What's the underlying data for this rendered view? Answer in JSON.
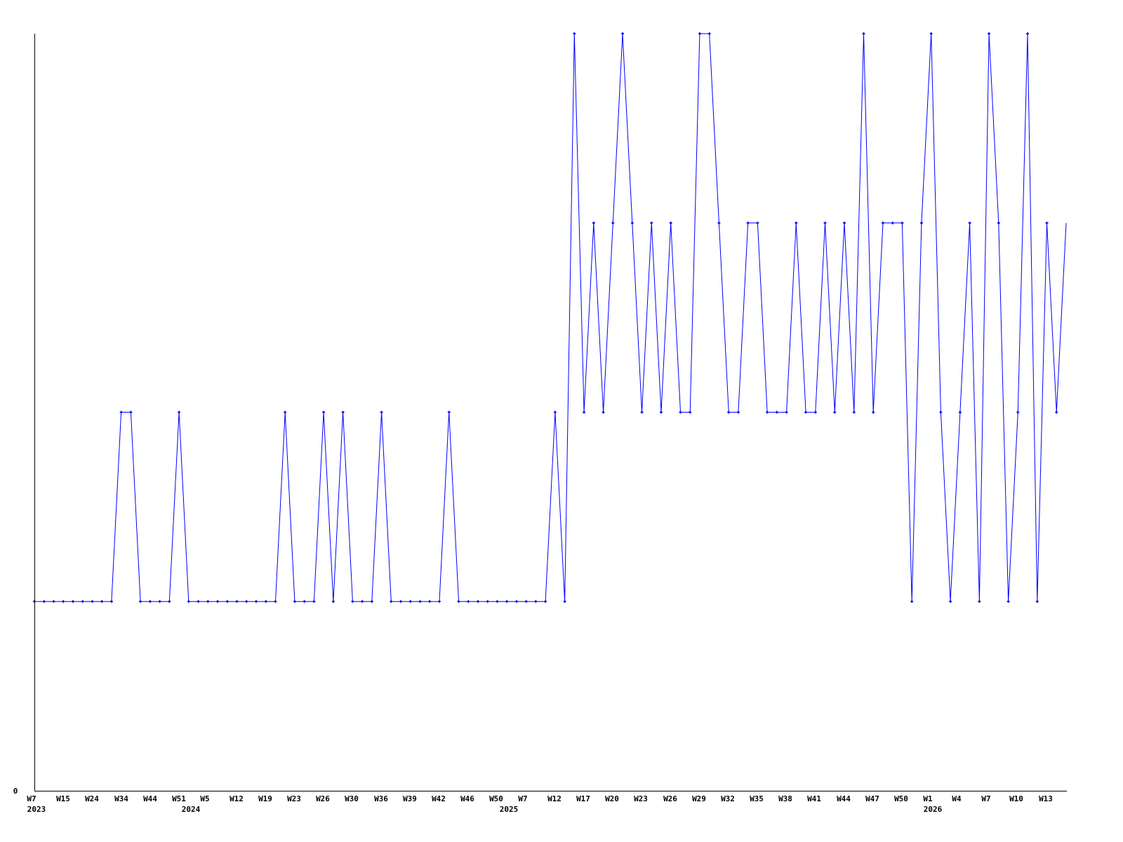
{
  "chart_data": {
    "type": "line",
    "title": "",
    "xlabel": "",
    "ylabel": "",
    "ylim": [
      0,
      4
    ],
    "y_tick_labels": [
      "0"
    ],
    "grid": false,
    "line_color": "#0000ff",
    "axis_color": "#000000",
    "x_tick_labels": [
      "W7",
      "W15",
      "W24",
      "W34",
      "W44",
      "W51",
      "W5",
      "W12",
      "W19",
      "W23",
      "W26",
      "W30",
      "W36",
      "W39",
      "W42",
      "W46",
      "W50",
      "W7",
      "W12",
      "W17",
      "W20",
      "W23",
      "W26",
      "W29",
      "W32",
      "W35",
      "W38",
      "W41",
      "W44",
      "W47",
      "W50",
      "W1",
      "W4",
      "W7",
      "W10",
      "W13"
    ],
    "year_labels": [
      "2023",
      "2024",
      "2025",
      "2026"
    ],
    "series": [
      {
        "values": [
          1,
          1,
          1,
          1,
          1,
          1,
          1,
          1,
          1,
          2,
          2,
          1,
          1,
          1,
          1,
          2,
          1,
          1,
          1,
          1,
          1,
          1,
          1,
          1,
          1,
          1,
          2,
          1,
          1,
          1,
          2,
          1,
          2,
          1,
          1,
          1,
          2,
          1,
          1,
          1,
          1,
          1,
          1,
          2,
          1,
          1,
          1,
          1,
          1,
          1,
          1,
          1,
          1,
          1,
          2,
          1,
          4,
          2,
          3,
          2,
          3,
          4,
          3,
          2,
          3,
          2,
          3,
          2,
          2,
          4,
          4,
          3,
          2,
          2,
          3,
          3,
          2,
          2,
          2,
          3,
          2,
          2,
          3,
          2,
          3,
          2,
          4,
          2,
          3,
          3,
          3,
          1,
          3,
          4,
          2,
          1,
          2,
          3,
          1,
          4,
          3,
          1,
          2,
          4,
          1,
          3,
          2,
          3
        ]
      }
    ]
  }
}
